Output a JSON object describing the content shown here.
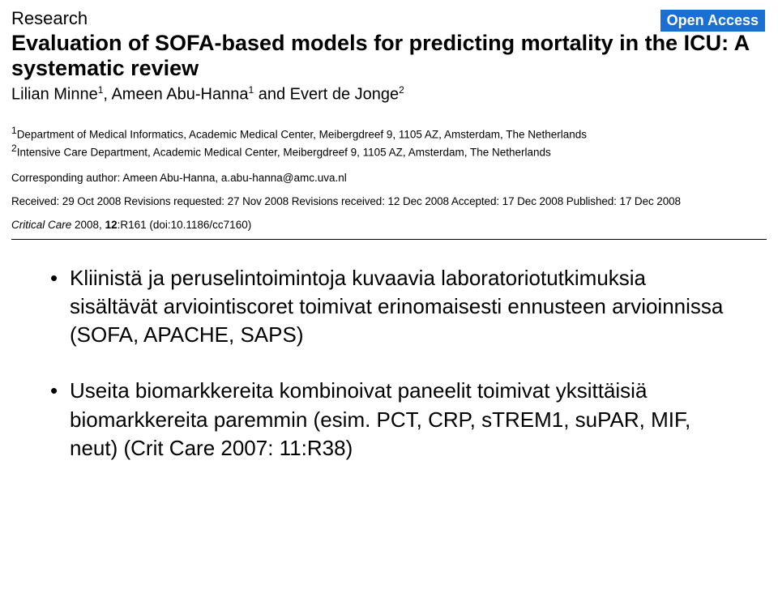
{
  "header": {
    "section_label": "Research",
    "open_access": "Open Access",
    "title": "Evaluation of SOFA-based models for predicting mortality in the ICU: A systematic review",
    "authors_html": "Lilian Minne¹, Ameen Abu-Hanna¹ and Evert de Jonge²",
    "author1": "Lilian Minne",
    "author1_sup": "1",
    "author_sep1": ", ",
    "author2": "Ameen Abu-Hanna",
    "author2_sup": "1",
    "author_sep2": " and ",
    "author3": "Evert de Jonge",
    "author3_sup": "2"
  },
  "affiliations": {
    "line1_sup": "1",
    "line1": "Department of Medical Informatics, Academic Medical Center, Meibergdreef 9, 1105 AZ, Amsterdam, The Netherlands",
    "line2_sup": "2",
    "line2": "Intensive Care Department, Academic Medical Center, Meibergdreef 9, 1105 AZ, Amsterdam, The Netherlands"
  },
  "corresponding": "Corresponding author: Ameen Abu-Hanna, a.abu-hanna@amc.uva.nl",
  "dates": "Received: 29 Oct 2008  Revisions requested: 27 Nov 2008  Revisions received: 12 Dec 2008  Accepted: 17 Dec 2008  Published: 17 Dec 2008",
  "citation": {
    "journal": "Critical Care",
    "year": " 2008, ",
    "volume": "12",
    "rest": ":R161 (doi:10.1186/cc7160)"
  },
  "bullets": {
    "item1": "Kliinistä ja peruselintoimintoja kuvaavia laboratoriotutkimuksia sisältävät arviointiscoret toimivat erinomaisesti ennusteen arvioinnissa (SOFA, APACHE, SAPS)",
    "item2": "Useita biomarkkereita kombinoivat paneelit toimivat yksittäisiä biomarkkereita paremmin (esim. PCT, CRP, sTREM1, suPAR, MIF, neut) (Crit Care 2007: 11:R38)"
  }
}
